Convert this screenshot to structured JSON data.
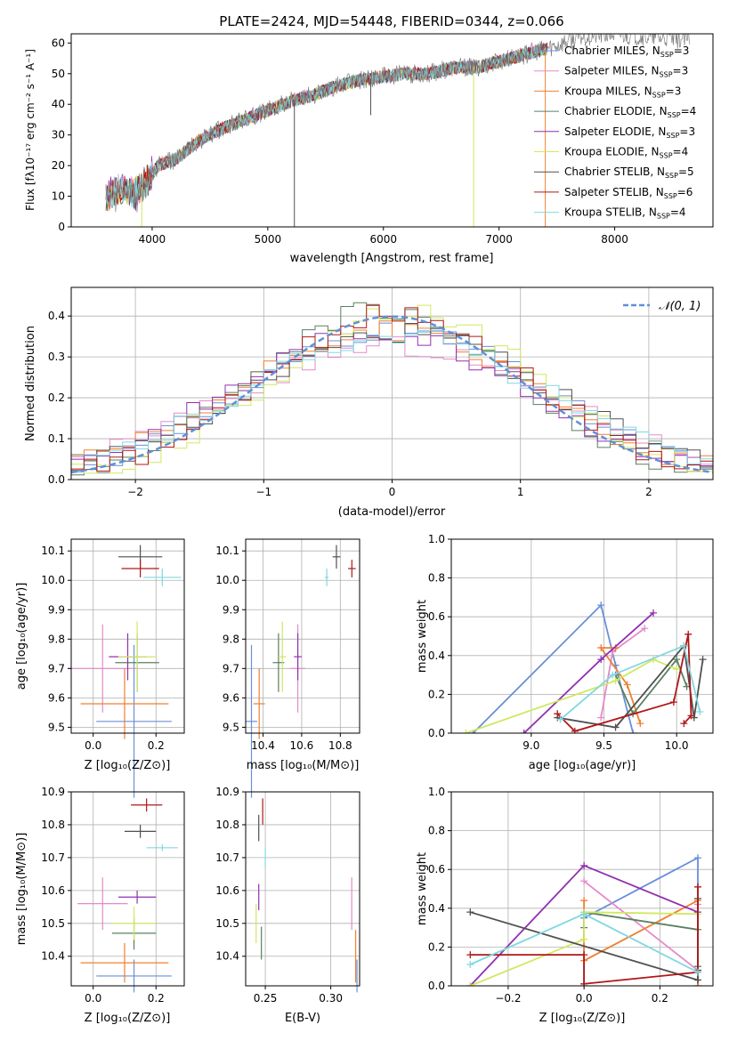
{
  "colors": {
    "chabrier_miles": "#6a8fd8",
    "salpeter_miles": "#e58ac9",
    "kroupa_miles": "#f08030",
    "chabrier_elodie": "#5a8060",
    "salpeter_elodie": "#9030b0",
    "kroupa_elodie": "#d0e860",
    "chabrier_stelib": "#505050",
    "salpeter_stelib": "#b01818",
    "kroupa_stelib": "#80d8e0",
    "data": "#808080",
    "normal": "#6090d8"
  },
  "chart_data": [
    {
      "id": "spectrum",
      "type": "line",
      "title": "PLATE=2424, MJD=54448, FIBERID=0344, z=0.066",
      "xlabel": "wavelength [Angstrom, rest frame]",
      "ylabel": "Flux [fλ10⁻¹⁷ erg cm⁻² s⁻¹ A⁻¹]",
      "xlim": [
        3300,
        8850
      ],
      "ylim": [
        0,
        63
      ],
      "xticks": [
        "4000",
        "5000",
        "6000",
        "7000",
        "8000"
      ],
      "yticks": [
        "0",
        "10",
        "20",
        "30",
        "40",
        "50",
        "60"
      ],
      "legend_position": "right",
      "legend": [
        {
          "label": "Chabrier MILES, N",
          "sub": "SSP",
          "tail": "=3"
        },
        {
          "label": "Salpeter MILES, N",
          "sub": "SSP",
          "tail": "=3"
        },
        {
          "label": "Kroupa MILES, N",
          "sub": "SSP",
          "tail": "=3"
        },
        {
          "label": "Chabrier ELODIE, N",
          "sub": "SSP",
          "tail": "=4"
        },
        {
          "label": "Salpeter ELODIE, N",
          "sub": "SSP",
          "tail": "=3"
        },
        {
          "label": "Kroupa ELODIE, N",
          "sub": "SSP",
          "tail": "=4"
        },
        {
          "label": "Chabrier STELIB, N",
          "sub": "SSP",
          "tail": "=5"
        },
        {
          "label": "Salpeter STELIB, N",
          "sub": "SSP",
          "tail": "=6"
        },
        {
          "label": "Kroupa STELIB, N",
          "sub": "SSP",
          "tail": "=4"
        }
      ],
      "continuum": [
        [
          3600,
          10
        ],
        [
          3700,
          12
        ],
        [
          3850,
          11
        ],
        [
          3950,
          15
        ],
        [
          4050,
          20
        ],
        [
          4200,
          22
        ],
        [
          4400,
          28
        ],
        [
          4600,
          32
        ],
        [
          4800,
          35
        ],
        [
          5000,
          38
        ],
        [
          5200,
          41
        ],
        [
          5400,
          43
        ],
        [
          5600,
          46
        ],
        [
          5800,
          48
        ],
        [
          6000,
          49
        ],
        [
          6200,
          50
        ],
        [
          6400,
          50
        ],
        [
          6600,
          52
        ],
        [
          6800,
          52
        ],
        [
          7000,
          54
        ],
        [
          7200,
          56
        ],
        [
          7400,
          58
        ],
        [
          7700,
          62
        ],
        [
          8000,
          63
        ],
        [
          8300,
          62
        ],
        [
          8650,
          61
        ]
      ],
      "absorption_lines": [
        {
          "x": 5230,
          "depth": 50
        },
        {
          "x": 5890,
          "depth": 12
        },
        {
          "x": 6780,
          "depth": 52
        },
        {
          "x": 7400,
          "depth": 58
        }
      ]
    },
    {
      "id": "residuals",
      "type": "line",
      "xlabel": "(data-model)/error",
      "ylabel": "Normed distribution",
      "xlim": [
        -2.5,
        2.5
      ],
      "ylim": [
        0,
        0.47
      ],
      "xticks": [
        -2,
        -1,
        0,
        1,
        2
      ],
      "xtick_labels": [
        "−2",
        "−1",
        "0",
        "1",
        "2"
      ],
      "yticks": [
        0,
        0.1,
        0.2,
        0.3,
        0.4
      ],
      "ytick_labels": [
        "0.0",
        "0.1",
        "0.2",
        "0.3",
        "0.4"
      ],
      "grid": true,
      "legend_position": "top-right",
      "normal_label": "𝒩(0, 1)",
      "bin_width": 0.1
    },
    {
      "id": "age_vs_z",
      "type": "scatter",
      "xlabel": "Z [log₁₀(Z/Z⊙)]",
      "ylabel": "age  [log₁₀(age/yr)]",
      "xlim": [
        -0.07,
        0.29
      ],
      "ylim": [
        9.48,
        10.14
      ],
      "xticks": [
        0.0,
        0.2
      ],
      "xtick_labels": [
        "0.0",
        "0.2"
      ],
      "yticks": [
        9.5,
        9.6,
        9.7,
        9.8,
        9.9,
        10.0,
        10.1
      ],
      "ytick_labels": [
        "9.5",
        "9.6",
        "9.7",
        "9.8",
        "9.9",
        "10.0",
        "10.1"
      ],
      "grid": true,
      "points": [
        {
          "series": "chabrier_miles",
          "x": 0.13,
          "xerr": 0.12,
          "y": 9.52,
          "yerr": 0.26
        },
        {
          "series": "salpeter_miles",
          "x": 0.03,
          "xerr": 0.11,
          "y": 9.7,
          "yerr": 0.15
        },
        {
          "series": "kroupa_miles",
          "x": 0.1,
          "xerr": 0.14,
          "y": 9.58,
          "yerr": 0.12
        },
        {
          "series": "chabrier_elodie",
          "x": 0.14,
          "xerr": 0.07,
          "y": 9.72,
          "yerr": 0.1
        },
        {
          "series": "salpeter_elodie",
          "x": 0.11,
          "xerr": 0.06,
          "y": 9.74,
          "yerr": 0.08
        },
        {
          "series": "kroupa_elodie",
          "x": 0.14,
          "xerr": 0.06,
          "y": 9.74,
          "yerr": 0.12
        },
        {
          "series": "chabrier_stelib",
          "x": 0.15,
          "xerr": 0.07,
          "y": 10.08,
          "yerr": 0.04
        },
        {
          "series": "salpeter_stelib",
          "x": 0.15,
          "xerr": 0.06,
          "y": 10.04,
          "yerr": 0.03
        },
        {
          "series": "kroupa_stelib",
          "x": 0.22,
          "xerr": 0.06,
          "y": 10.01,
          "yerr": 0.03
        }
      ]
    },
    {
      "id": "age_vs_mass",
      "type": "scatter",
      "xlabel": "mass [log₁₀(M/M⊙)]",
      "xlim": [
        10.31,
        10.9
      ],
      "ylim": [
        9.48,
        10.14
      ],
      "xticks": [
        10.4,
        10.6,
        10.8
      ],
      "xtick_labels": [
        "10.4",
        "10.6",
        "10.8"
      ],
      "yticks": [
        9.5,
        9.6,
        9.7,
        9.8,
        9.9,
        10.0,
        10.1
      ],
      "ytick_labels": [
        "9.5",
        "9.6",
        "9.7",
        "9.8",
        "9.9",
        "10.0",
        "10.1"
      ],
      "grid": true,
      "points": [
        {
          "series": "chabrier_miles",
          "x": 10.34,
          "xerr": 0.03,
          "y": 9.52,
          "yerr": 0.26
        },
        {
          "series": "salpeter_miles",
          "x": 10.58,
          "xerr": 0.04,
          "y": 9.7,
          "yerr": 0.15
        },
        {
          "series": "kroupa_miles",
          "x": 10.38,
          "xerr": 0.03,
          "y": 9.58,
          "yerr": 0.12
        },
        {
          "series": "chabrier_elodie",
          "x": 10.48,
          "xerr": 0.03,
          "y": 9.72,
          "yerr": 0.1
        },
        {
          "series": "salpeter_elodie",
          "x": 10.58,
          "xerr": 0.02,
          "y": 9.74,
          "yerr": 0.08
        },
        {
          "series": "kroupa_elodie",
          "x": 10.5,
          "xerr": 0.02,
          "y": 9.74,
          "yerr": 0.12
        },
        {
          "series": "chabrier_stelib",
          "x": 10.78,
          "xerr": 0.02,
          "y": 10.08,
          "yerr": 0.04
        },
        {
          "series": "salpeter_stelib",
          "x": 10.86,
          "xerr": 0.02,
          "y": 10.04,
          "yerr": 0.03
        },
        {
          "series": "kroupa_stelib",
          "x": 10.73,
          "xerr": 0.01,
          "y": 10.01,
          "yerr": 0.03
        }
      ]
    },
    {
      "id": "weight_vs_age",
      "type": "line",
      "xlabel": "age  [log₁₀(age/yr)]",
      "ylabel": "mass weight",
      "xlim": [
        8.45,
        10.25
      ],
      "ylim": [
        0,
        1.0
      ],
      "xticks": [
        9.0,
        9.5,
        10.0
      ],
      "xtick_labels": [
        "9.0",
        "9.5",
        "10.0"
      ],
      "yticks": [
        0,
        0.2,
        0.4,
        0.6,
        0.8,
        1.0
      ],
      "ytick_labels": [
        "0.0",
        "0.2",
        "0.4",
        "0.6",
        "0.8",
        "1.0"
      ],
      "grid": true,
      "series": [
        {
          "name": "chabrier_miles",
          "points": [
            [
              8.6,
              0.0
            ],
            [
              9.48,
              0.66
            ],
            [
              9.58,
              0.35
            ],
            [
              9.7,
              0.0
            ]
          ]
        },
        {
          "name": "salpeter_miles",
          "points": [
            [
              9.48,
              0.08
            ],
            [
              9.56,
              0.42
            ],
            [
              9.78,
              0.54
            ]
          ]
        },
        {
          "name": "kroupa_miles",
          "points": [
            [
              9.58,
              0.44
            ],
            [
              9.48,
              0.44
            ],
            [
              9.66,
              0.25
            ],
            [
              9.75,
              0.05
            ]
          ]
        },
        {
          "name": "chabrier_elodie",
          "points": [
            [
              9.58,
              0.3
            ],
            [
              9.7,
              0.1
            ],
            [
              10.0,
              0.38
            ],
            [
              10.07,
              0.24
            ]
          ]
        },
        {
          "name": "salpeter_elodie",
          "points": [
            [
              8.95,
              0.0
            ],
            [
              9.48,
              0.38
            ],
            [
              9.84,
              0.62
            ]
          ]
        },
        {
          "name": "kroupa_elodie",
          "points": [
            [
              8.55,
              0.0
            ],
            [
              9.58,
              0.27
            ],
            [
              9.84,
              0.38
            ],
            [
              10.0,
              0.33
            ]
          ]
        },
        {
          "name": "chabrier_stelib",
          "points": [
            [
              9.18,
              0.08
            ],
            [
              9.58,
              0.03
            ],
            [
              10.05,
              0.45
            ],
            [
              10.12,
              0.08
            ],
            [
              10.18,
              0.38
            ]
          ]
        },
        {
          "name": "salpeter_stelib",
          "points": [
            [
              9.18,
              0.1
            ],
            [
              9.3,
              0.01
            ],
            [
              9.98,
              0.16
            ],
            [
              10.08,
              0.51
            ],
            [
              10.1,
              0.09
            ],
            [
              10.05,
              0.05
            ]
          ]
        },
        {
          "name": "kroupa_stelib",
          "points": [
            [
              9.2,
              0.07
            ],
            [
              9.56,
              0.3
            ],
            [
              10.05,
              0.45
            ],
            [
              10.16,
              0.11
            ]
          ]
        }
      ]
    },
    {
      "id": "mass_vs_z",
      "type": "scatter",
      "xlabel": "Z [log₁₀(Z/Z⊙)]",
      "ylabel": "mass [log₁₀(M/M⊙)]",
      "xlim": [
        -0.07,
        0.29
      ],
      "ylim": [
        10.31,
        10.9
      ],
      "xticks": [
        0.0,
        0.2
      ],
      "xtick_labels": [
        "0.0",
        "0.2"
      ],
      "yticks": [
        10.4,
        10.5,
        10.6,
        10.7,
        10.8,
        10.9
      ],
      "ytick_labels": [
        "10.4",
        "10.5",
        "10.6",
        "10.7",
        "10.8",
        "10.9"
      ],
      "grid": true,
      "points": [
        {
          "series": "chabrier_miles",
          "x": 0.13,
          "xerr": 0.12,
          "y": 10.34,
          "yerr": 0.05
        },
        {
          "series": "salpeter_miles",
          "x": 0.03,
          "xerr": 0.08,
          "y": 10.56,
          "yerr": 0.08
        },
        {
          "series": "kroupa_miles",
          "x": 0.1,
          "xerr": 0.14,
          "y": 10.38,
          "yerr": 0.06
        },
        {
          "series": "chabrier_elodie",
          "x": 0.13,
          "xerr": 0.07,
          "y": 10.47,
          "yerr": 0.05
        },
        {
          "series": "salpeter_elodie",
          "x": 0.14,
          "xerr": 0.06,
          "y": 10.58,
          "yerr": 0.02
        },
        {
          "series": "kroupa_elodie",
          "x": 0.13,
          "xerr": 0.07,
          "y": 10.5,
          "yerr": 0.05
        },
        {
          "series": "chabrier_stelib",
          "x": 0.15,
          "xerr": 0.05,
          "y": 10.78,
          "yerr": 0.02
        },
        {
          "series": "salpeter_stelib",
          "x": 0.17,
          "xerr": 0.05,
          "y": 10.86,
          "yerr": 0.02
        },
        {
          "series": "kroupa_stelib",
          "x": 0.22,
          "xerr": 0.05,
          "y": 10.73,
          "yerr": 0.01
        }
      ]
    },
    {
      "id": "mass_vs_ebv",
      "type": "scatter",
      "xlabel": "E(B-V)",
      "xlim": [
        0.235,
        0.322
      ],
      "ylim": [
        10.31,
        10.9
      ],
      "xticks": [
        0.25,
        0.3
      ],
      "xtick_labels": [
        "0.25",
        "0.30"
      ],
      "yticks": [
        10.4,
        10.5,
        10.6,
        10.7,
        10.8,
        10.9
      ],
      "ytick_labels": [
        "10.4",
        "10.5",
        "10.6",
        "10.7",
        "10.8",
        "10.9"
      ],
      "grid": true,
      "points": [
        {
          "series": "chabrier_miles",
          "x": 0.32,
          "xerr": 0,
          "y": 10.34,
          "yerr": 0.05
        },
        {
          "series": "salpeter_miles",
          "x": 0.316,
          "xerr": 0,
          "y": 10.56,
          "yerr": 0.08
        },
        {
          "series": "kroupa_miles",
          "x": 0.319,
          "xerr": 0,
          "y": 10.4,
          "yerr": 0.08
        },
        {
          "series": "chabrier_elodie",
          "x": 0.247,
          "xerr": 0,
          "y": 10.44,
          "yerr": 0.05
        },
        {
          "series": "salpeter_elodie",
          "x": 0.245,
          "xerr": 0,
          "y": 10.58,
          "yerr": 0.04
        },
        {
          "series": "kroupa_elodie",
          "x": 0.243,
          "xerr": 0,
          "y": 10.5,
          "yerr": 0.06
        },
        {
          "series": "chabrier_stelib",
          "x": 0.245,
          "xerr": 0,
          "y": 10.79,
          "yerr": 0.04
        },
        {
          "series": "salpeter_stelib",
          "x": 0.248,
          "xerr": 0,
          "y": 10.84,
          "yerr": 0.04
        },
        {
          "series": "kroupa_stelib",
          "x": 0.25,
          "xerr": 0,
          "y": 10.7,
          "yerr": 0.03
        }
      ]
    },
    {
      "id": "weight_vs_z",
      "type": "line",
      "xlabel": "Z [log₁₀(Z/Z⊙)]",
      "ylabel": "mass weight",
      "xlim": [
        -0.35,
        0.34
      ],
      "ylim": [
        0,
        1.0
      ],
      "xticks": [
        -0.2,
        0.0,
        0.2
      ],
      "xtick_labels": [
        "−0.2",
        "0.0",
        "0.2"
      ],
      "yticks": [
        0,
        0.2,
        0.4,
        0.6,
        0.8,
        1.0
      ],
      "ytick_labels": [
        "0.0",
        "0.2",
        "0.4",
        "0.6",
        "0.8",
        "1.0"
      ],
      "grid": true,
      "series": [
        {
          "name": "chabrier_miles",
          "points": [
            [
              0.0,
              0.0
            ],
            [
              0.0,
              0.35
            ],
            [
              0.3,
              0.66
            ],
            [
              0.3,
              0.0
            ]
          ]
        },
        {
          "name": "salpeter_miles",
          "points": [
            [
              0.0,
              0.54
            ],
            [
              0.3,
              0.08
            ],
            [
              0.3,
              0.42
            ]
          ]
        },
        {
          "name": "kroupa_miles",
          "points": [
            [
              0.0,
              0.44
            ],
            [
              0.0,
              0.13
            ],
            [
              0.3,
              0.44
            ],
            [
              0.3,
              0.0
            ]
          ]
        },
        {
          "name": "chabrier_elodie",
          "points": [
            [
              0.0,
              0.3
            ],
            [
              0.0,
              0.38
            ],
            [
              0.3,
              0.29
            ],
            [
              0.3,
              0.1
            ]
          ]
        },
        {
          "name": "salpeter_elodie",
          "points": [
            [
              -0.3,
              0.0
            ],
            [
              0.0,
              0.62
            ],
            [
              0.3,
              0.38
            ]
          ]
        },
        {
          "name": "kroupa_elodie",
          "points": [
            [
              -0.3,
              0.0
            ],
            [
              0.0,
              0.24
            ],
            [
              0.0,
              0.38
            ],
            [
              0.3,
              0.37
            ]
          ]
        },
        {
          "name": "chabrier_stelib",
          "points": [
            [
              -0.3,
              0.38
            ],
            [
              0.3,
              0.03
            ],
            [
              0.3,
              0.45
            ],
            [
              0.3,
              0.08
            ]
          ]
        },
        {
          "name": "salpeter_stelib",
          "points": [
            [
              -0.3,
              0.16
            ],
            [
              0.0,
              0.16
            ],
            [
              0.0,
              0.01
            ],
            [
              0.3,
              0.07
            ],
            [
              0.3,
              0.51
            ]
          ]
        },
        {
          "name": "kroupa_stelib",
          "points": [
            [
              -0.3,
              0.11
            ],
            [
              0.0,
              0.37
            ],
            [
              0.3,
              0.07
            ]
          ]
        }
      ]
    }
  ]
}
